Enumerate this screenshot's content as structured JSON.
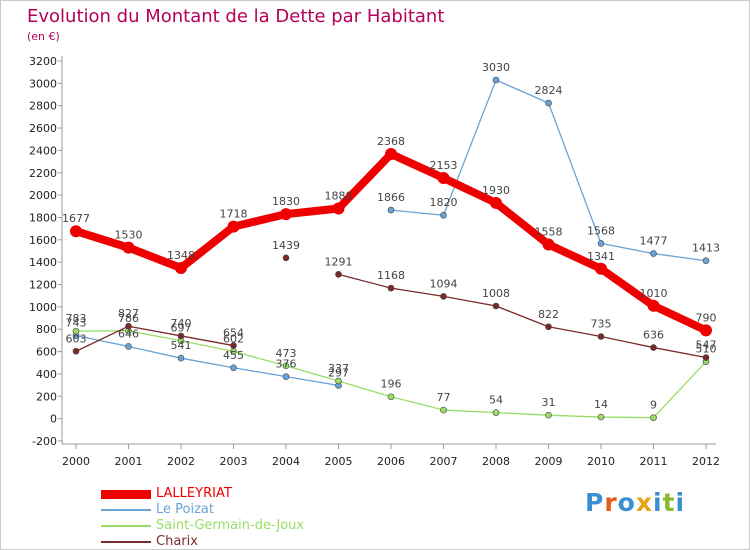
{
  "header": {
    "title": "Evolution du Montant de la Dette par Habitant",
    "subtitle": "(en €)"
  },
  "logo": {
    "text": "Proxiti",
    "letter_colors": [
      "#3a8fd1",
      "#e85a1a",
      "#3a8fd1",
      "#e8a312",
      "#3a8fd1",
      "#8ab82e",
      "#3a8fd1"
    ]
  },
  "chart_data": {
    "type": "line",
    "title": "Evolution du Montant de la Dette par Habitant",
    "subtitle": "(en €)",
    "xlabel": "",
    "ylabel": "",
    "x": [
      "2000",
      "2001",
      "2002",
      "2003",
      "2004",
      "2005",
      "2006",
      "2007",
      "2008",
      "2009",
      "2010",
      "2011",
      "2012"
    ],
    "ylim": [
      -200,
      3200
    ],
    "ytick_step": 200,
    "grid": false,
    "legend_position": "bottom-left",
    "series": [
      {
        "name": "LALLEYRIAT",
        "color": "#ee0000",
        "emphasis": true,
        "values": [
          1677,
          1530,
          1348,
          1718,
          1830,
          1880,
          2368,
          2153,
          1930,
          1558,
          1341,
          1010,
          790
        ]
      },
      {
        "name": "Le Poizat",
        "color": "#6aa3d6",
        "emphasis": false,
        "values": [
          743,
          646,
          541,
          455,
          376,
          297,
          1866,
          1820,
          3030,
          2824,
          1568,
          1477,
          1413
        ]
      },
      {
        "name": "Saint-Germain-de-Joux",
        "color": "#99dd66",
        "emphasis": false,
        "values": [
          783,
          786,
          697,
          602,
          473,
          337,
          196,
          77,
          54,
          31,
          14,
          9,
          510
        ]
      },
      {
        "name": "Charix",
        "color": "#7a2a2a",
        "emphasis": false,
        "values": [
          603,
          827,
          740,
          654,
          1439,
          1291,
          1168,
          1094,
          1008,
          822,
          735,
          636,
          547
        ]
      }
    ],
    "breaks": [
      {
        "series": 1,
        "after": 5
      },
      {
        "series": 3,
        "after": 3
      },
      {
        "series": 3,
        "after": 4
      }
    ]
  }
}
